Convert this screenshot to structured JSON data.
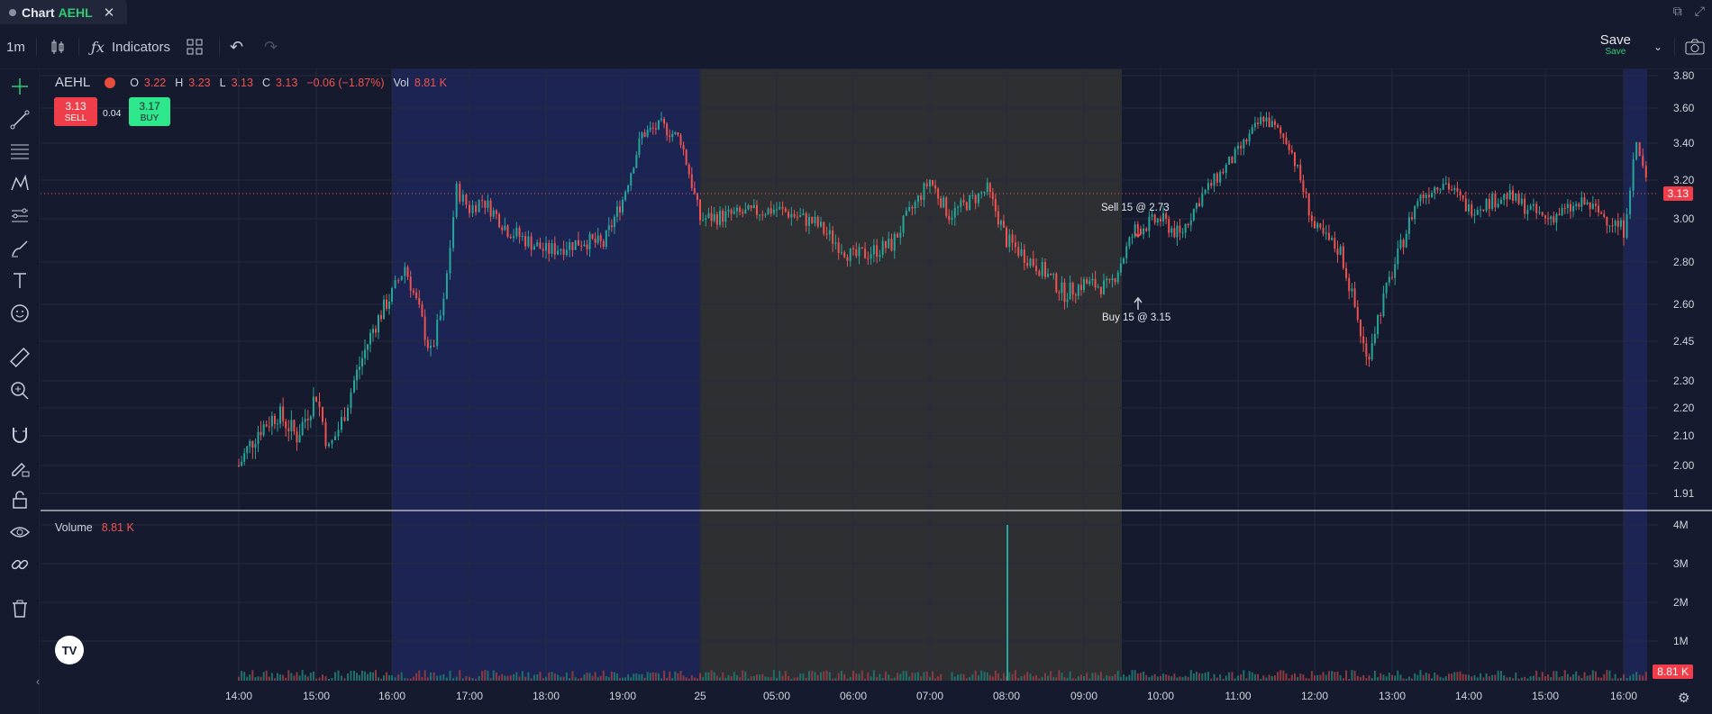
{
  "tab": {
    "title": "Chart",
    "symbol": "AEHL"
  },
  "toolbar": {
    "interval": "1m",
    "indicators_label": "Indicators",
    "save_label": "Save",
    "save_status": "Save"
  },
  "legend": {
    "symbol": "AEHL",
    "open_label": "O",
    "open": "3.22",
    "high_label": "H",
    "high": "3.23",
    "low_label": "L",
    "low": "3.13",
    "close_label": "C",
    "close": "3.13",
    "change": "−0.06 (−1.87%)",
    "vol_label": "Vol",
    "vol": "8.81 K"
  },
  "order": {
    "sell_price": "3.13",
    "sell_label": "SELL",
    "spread": "0.04",
    "buy_price": "3.17",
    "buy_label": "BUY"
  },
  "volume_legend": {
    "label": "Volume",
    "value": "8.81 K"
  },
  "trades": {
    "sell_label": "Sell 15 @ 2.73",
    "buy_label": "Buy 15 @ 3.15"
  },
  "logo_text": "TV",
  "price_tags": {
    "last": "3.13",
    "volume": "8.81 K"
  },
  "colors": {
    "up": "#26a69a",
    "down": "#ef5350",
    "bg": "#161a2e",
    "blue_session": "#1c2454",
    "gray_session": "#2d2f33",
    "sell_btn": "#ef3e4a",
    "buy_btn": "#2ee68b"
  },
  "icons": [
    "crosshair-icon",
    "trend-line-icon",
    "fib-icon",
    "pattern-icon",
    "long-short-icon",
    "brush-icon",
    "text-icon",
    "emoji-icon",
    "ruler-icon",
    "zoom-icon",
    "magnet-icon",
    "lock-draw-icon",
    "lock-icon",
    "eye-icon",
    "link-icon",
    "trash-icon"
  ],
  "chart_data": {
    "type": "candlestick",
    "symbol": "AEHL",
    "interval": "1m",
    "x_ticks": [
      "14:00",
      "15:00",
      "16:00",
      "17:00",
      "18:00",
      "19:00",
      "25",
      "05:00",
      "06:00",
      "07:00",
      "08:00",
      "09:00",
      "10:00",
      "11:00",
      "12:00",
      "13:00",
      "14:00",
      "15:00",
      "16:00"
    ],
    "price_ticks": [
      "3.80",
      "3.60",
      "3.40",
      "3.20",
      "3.00",
      "2.80",
      "2.60",
      "2.45",
      "2.30",
      "2.20",
      "2.10",
      "2.00",
      "1.91"
    ],
    "volume_ticks": [
      "4M",
      "3M",
      "2M",
      "1M"
    ],
    "price_path": [
      [
        "14:00",
        2.0
      ],
      [
        "14:15",
        2.12
      ],
      [
        "14:30",
        2.18
      ],
      [
        "14:45",
        2.1
      ],
      [
        "15:00",
        2.25
      ],
      [
        "15:10",
        2.05
      ],
      [
        "15:20",
        2.15
      ],
      [
        "15:30",
        2.3
      ],
      [
        "15:45",
        2.5
      ],
      [
        "16:00",
        2.65
      ],
      [
        "16:10",
        2.78
      ],
      [
        "16:30",
        2.4
      ],
      [
        "16:40",
        2.6
      ],
      [
        "16:50",
        3.15
      ],
      [
        "17:00",
        3.05
      ],
      [
        "17:10",
        3.1
      ],
      [
        "17:30",
        2.95
      ],
      [
        "18:00",
        2.85
      ],
      [
        "18:30",
        2.9
      ],
      [
        "18:45",
        2.88
      ],
      [
        "19:00",
        3.1
      ],
      [
        "19:15",
        3.45
      ],
      [
        "19:30",
        3.5
      ],
      [
        "19:45",
        3.42
      ],
      [
        "25",
        3.0
      ],
      [
        "05:00",
        3.05
      ],
      [
        "05:30",
        2.98
      ],
      [
        "06:00",
        2.82
      ],
      [
        "06:30",
        2.88
      ],
      [
        "07:00",
        3.2
      ],
      [
        "07:15",
        3.02
      ],
      [
        "07:45",
        3.15
      ],
      [
        "08:00",
        2.9
      ],
      [
        "08:30",
        2.75
      ],
      [
        "08:45",
        2.65
      ],
      [
        "09:00",
        2.7
      ],
      [
        "09:20",
        2.68
      ],
      [
        "09:40",
        2.95
      ],
      [
        "10:00",
        3.0
      ],
      [
        "10:15",
        2.92
      ],
      [
        "10:30",
        3.1
      ],
      [
        "11:00",
        3.35
      ],
      [
        "11:20",
        3.55
      ],
      [
        "11:40",
        3.4
      ],
      [
        "12:00",
        2.95
      ],
      [
        "12:20",
        2.85
      ],
      [
        "12:40",
        2.38
      ],
      [
        "13:00",
        2.75
      ],
      [
        "13:20",
        3.1
      ],
      [
        "13:40",
        3.2
      ],
      [
        "14:00",
        3.05
      ],
      [
        "14:30",
        3.12
      ],
      [
        "15:00",
        3.0
      ],
      [
        "15:30",
        3.08
      ],
      [
        "16:00",
        2.95
      ],
      [
        "16:10",
        3.4
      ],
      [
        "16:20",
        3.13
      ]
    ],
    "volume_spike": {
      "time": "08:00",
      "value": 4000000
    },
    "last_price": 3.13,
    "last_volume": "8.81 K",
    "annotations": [
      {
        "text": "Sell 15 @ 2.73",
        "time": "09:45"
      },
      {
        "text": "Buy 15 @ 3.15",
        "time": "09:45"
      }
    ]
  }
}
